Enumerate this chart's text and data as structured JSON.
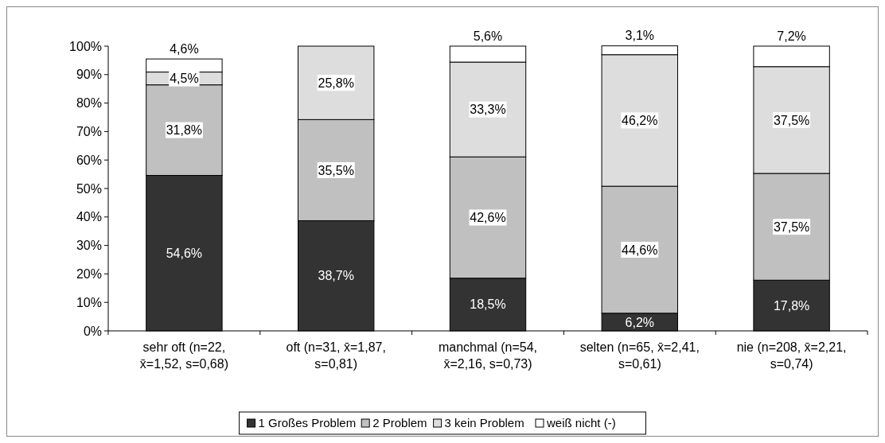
{
  "chart_data": {
    "type": "bar",
    "stacked": true,
    "legend": "bottom",
    "grid": false,
    "categories": [
      "sehr oft (n=22, x̄=1,52, s=0,68)",
      "oft (n=31, x̄=1,87, s=0,81)",
      "manchmal (n=54, x̄=2,16, s=0,73)",
      "selten (n=65, x̄=2,41, s=0,61)",
      "nie (n=208, x̄=2,21, s=0,74)"
    ],
    "series": [
      {
        "name": "1 Großes Problem",
        "color": "#333333",
        "values": [
          54.6,
          38.7,
          18.5,
          6.2,
          17.8
        ],
        "value_labels": [
          "54,6%",
          "38,7%",
          "18,5%",
          "6,2%",
          "17,8%"
        ]
      },
      {
        "name": "2 Problem",
        "color": "#c0c0c0",
        "values": [
          31.8,
          35.5,
          42.6,
          44.6,
          37.5
        ],
        "value_labels": [
          "31,8%",
          "35,5%",
          "42,6%",
          "44,6%",
          "37,5%"
        ]
      },
      {
        "name": "3 kein Problem",
        "color": "#dddddd",
        "values": [
          4.5,
          25.8,
          33.3,
          46.2,
          37.5
        ],
        "value_labels": [
          "4,5%",
          "25,8%",
          "33,3%",
          "46,2%",
          "37,5%"
        ]
      },
      {
        "name": "weiß nicht (-)",
        "color": "#ffffff",
        "values": [
          4.6,
          null,
          5.6,
          3.1,
          7.2
        ],
        "value_labels": [
          "4,6%",
          null,
          "5,6%",
          "3,1%",
          "7,2%"
        ]
      }
    ],
    "ylim": [
      0,
      100
    ],
    "yticks": [
      {
        "value": 0,
        "label": "0%"
      },
      {
        "value": 10,
        "label": "10%"
      },
      {
        "value": 20,
        "label": "20%"
      },
      {
        "value": 30,
        "label": "30%"
      },
      {
        "value": 40,
        "label": "40%"
      },
      {
        "value": 50,
        "label": "50%"
      },
      {
        "value": 60,
        "label": "60%"
      },
      {
        "value": 70,
        "label": "70%"
      },
      {
        "value": 80,
        "label": "80%"
      },
      {
        "value": 90,
        "label": "90%"
      },
      {
        "value": 100,
        "label": "100%"
      }
    ]
  }
}
